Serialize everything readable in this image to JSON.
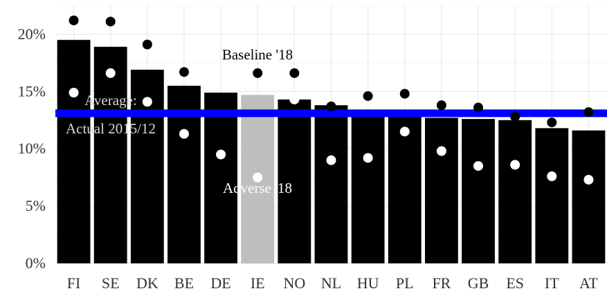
{
  "chart_data": {
    "type": "bar",
    "categories": [
      "FI",
      "SE",
      "DK",
      "BE",
      "DE",
      "IE",
      "NO",
      "NL",
      "HU",
      "PL",
      "FR",
      "GB",
      "ES",
      "IT",
      "AT"
    ],
    "series": [
      {
        "values": [
          19.5,
          18.9,
          16.9,
          15.5,
          14.9,
          14.7,
          14.3,
          13.8,
          13.2,
          13.0,
          12.7,
          12.6,
          12.5,
          11.8,
          11.6
        ]
      },
      {
        "values": [
          21.2,
          21.1,
          19.1,
          16.7,
          null,
          null,
          16.6,
          13.7,
          14.6,
          14.8,
          13.8,
          13.6,
          12.8,
          12.3,
          13.2
        ]
      },
      {
        "values": [
          14.9,
          16.6,
          14.1,
          11.3,
          9.5,
          7.5,
          14.3,
          9.0,
          9.2,
          11.5,
          9.8,
          8.5,
          8.6,
          7.6,
          7.3
        ]
      }
    ],
    "reference_line": {
      "value": 13.1,
      "color": "#0000ff"
    },
    "highlight_category": "IE",
    "bar_color": "#000000",
    "highlight_color": "#bebebe",
    "point_colors": [
      "#000000",
      "#ffffff"
    ],
    "y_ticks": [
      "0%",
      "5%",
      "10%",
      "15%",
      "20%"
    ],
    "y_tick_values": [
      0,
      5,
      10,
      15,
      20
    ],
    "ylim": [
      0,
      22.5
    ],
    "grid": true,
    "annotations": {
      "baseline": "Baseline '18",
      "adverse": "Adverse '18",
      "average_line1": "Average:",
      "average_line2": "Actual 2015/12"
    },
    "baseline_label_marker_value": 16.6
  }
}
